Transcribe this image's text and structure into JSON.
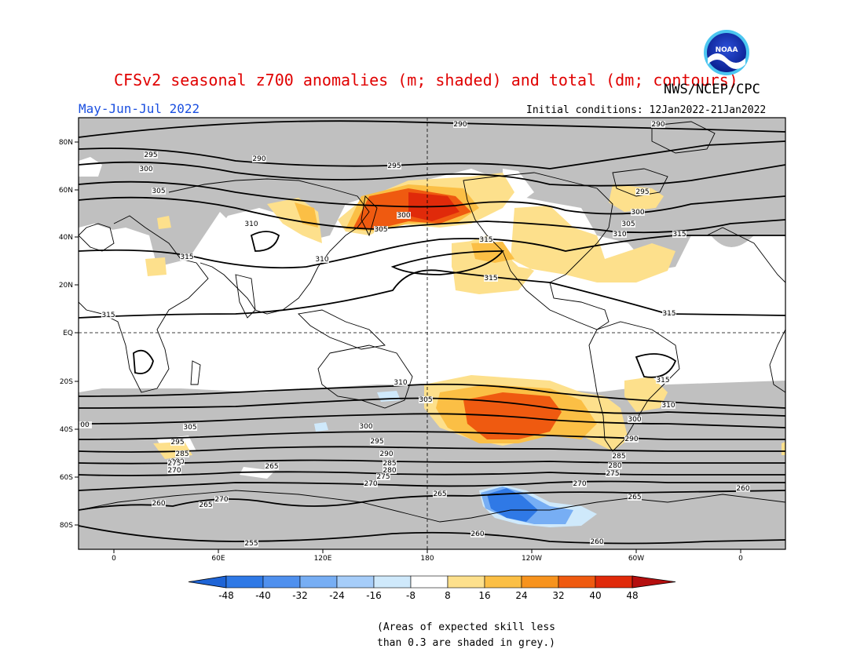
{
  "header": {
    "title": "CFSv2 seasonal z700 anomalies (m; shaded) and total (dm; contours)",
    "credit": "NWS/NCEP/CPC",
    "period": "May-Jun-Jul 2022",
    "initial_conditions": "Initial conditions: 12Jan2022-21Jan2022"
  },
  "logo": {
    "text": "NOAA"
  },
  "axes": {
    "lat_labels": [
      "80N",
      "60N",
      "40N",
      "20N",
      "EQ",
      "20S",
      "40S",
      "60S",
      "80S"
    ],
    "lon_labels": [
      "0",
      "60E",
      "120E",
      "180",
      "120W",
      "60W",
      "0"
    ]
  },
  "contour_labels": [
    "290",
    "290",
    "295",
    "290",
    "300",
    "295",
    "305",
    "295",
    "300",
    "300",
    "305",
    "305",
    "310",
    "310",
    "315",
    "315",
    "315",
    "315",
    "315",
    "315",
    "310",
    "310",
    "310",
    "305",
    "305",
    "300",
    "300",
    "295",
    "295",
    "290",
    "290",
    "285",
    "285",
    "285",
    "280",
    "280",
    "280",
    "275",
    "275",
    "275",
    "270",
    "270",
    "270",
    "270",
    "265",
    "265",
    "265",
    "265",
    "260",
    "260",
    "260",
    "260",
    "255",
    "00",
    "315",
    "305"
  ],
  "colorbar": {
    "tick_labels": [
      "-48",
      "-40",
      "-32",
      "-24",
      "-16",
      "-8",
      "8",
      "16",
      "24",
      "32",
      "40",
      "48"
    ],
    "colors": [
      "#1e64d6",
      "#2f79e6",
      "#4f90ee",
      "#77aef4",
      "#a6cdf9",
      "#cfe9fb",
      "#ffffff",
      "#fde08c",
      "#fbbf45",
      "#f7931e",
      "#ef5a10",
      "#e02a0a",
      "#b50f0f"
    ]
  },
  "note": {
    "line1": "(Areas of expected skill less",
    "line2": "than 0.3 are shaded in grey.)"
  },
  "skill_grey": "#c0c0c0"
}
